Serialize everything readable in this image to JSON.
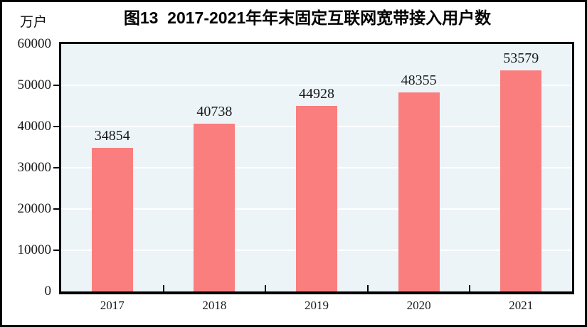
{
  "chart_data": {
    "type": "bar",
    "title": "图13  2017-2021年年末固定互联网宽带接入用户数",
    "unit_label": "万户",
    "categories": [
      "2017",
      "2018",
      "2019",
      "2020",
      "2021"
    ],
    "values": [
      34854,
      40738,
      44928,
      48355,
      53579
    ],
    "xlabel": "",
    "ylabel": "万户",
    "ylim": [
      0,
      60000
    ],
    "yticks": [
      0,
      10000,
      20000,
      30000,
      40000,
      50000,
      60000
    ],
    "grid": "horizontal",
    "legend_position": "none",
    "colors": {
      "bar": "#FB7E7E",
      "plot_background": "#ECF4F8",
      "gridline": "#FFFFFF",
      "axis_frame": "#000000",
      "text": "#1A1A1A"
    }
  }
}
